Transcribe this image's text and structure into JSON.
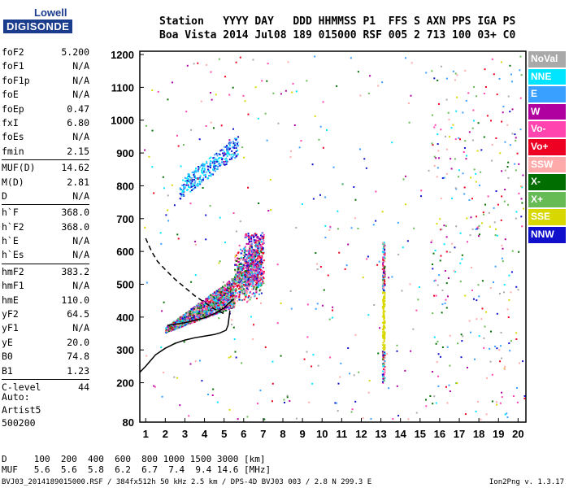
{
  "logo": {
    "line1": "Lowell",
    "line2": "DIGISONDE"
  },
  "header": {
    "line1": "Station   YYYY DAY   DDD HHMMSS P1  FFS S AXN PPS IGA PS",
    "line2": "Boa Vista 2014 Jul08 189 015000 RSF 005 2 713 100 03+ C0"
  },
  "params_groups": [
    [
      [
        "foF2",
        "5.200"
      ],
      [
        "foF1",
        "N/A"
      ],
      [
        "foF1p",
        "N/A"
      ],
      [
        "foE",
        "N/A"
      ],
      [
        "foEp",
        "0.47"
      ],
      [
        "fxI",
        "6.80"
      ],
      [
        "foEs",
        "N/A"
      ],
      [
        "fmin",
        "2.15"
      ]
    ],
    [
      [
        "MUF(D)",
        "14.62"
      ],
      [
        "M(D)",
        "2.81"
      ],
      [
        "D",
        "N/A"
      ]
    ],
    [
      [
        "h`F",
        "368.0"
      ],
      [
        "h`F2",
        "368.0"
      ],
      [
        "h`E",
        "N/A"
      ],
      [
        "h`Es",
        "N/A"
      ]
    ],
    [
      [
        "hmF2",
        "383.2"
      ],
      [
        "hmF1",
        "N/A"
      ],
      [
        "hmE",
        "110.0"
      ],
      [
        "yF2",
        "64.5"
      ],
      [
        "yF1",
        "N/A"
      ],
      [
        "yE",
        "20.0"
      ],
      [
        "B0",
        "74.8"
      ],
      [
        "B1",
        "1.23"
      ]
    ],
    [
      [
        "C-level",
        "44"
      ]
    ]
  ],
  "auto": {
    "line1": "Auto:",
    "line2": "Artist5",
    "line3": "500200"
  },
  "footer": {
    "d_row": "D     100  200  400  600  800 1000 1500 3000 [km]",
    "muf_row": "MUF   5.6  5.6  5.8  6.2  6.7  7.4  9.4 14.6 [MHz]",
    "file_info": "BVJ03_2014189015000.RSF / 384fx512h 50 kHz 2.5 km / DPS-4D BVJ03 003 / 2.8 N 299.3 E",
    "version": "Ion2Png v. 1.3.17"
  },
  "legend": [
    {
      "label": "NoVal",
      "color": "#a9a9a9"
    },
    {
      "label": "NNE",
      "color": "#00e5ff"
    },
    {
      "label": "E",
      "color": "#3aa0ff"
    },
    {
      "label": "W",
      "color": "#b000a0"
    },
    {
      "label": "Vo-",
      "color": "#ff44b0"
    },
    {
      "label": "Vo+",
      "color": "#ee0022"
    },
    {
      "label": "SSW",
      "color": "#ffaaaa"
    },
    {
      "label": "X-",
      "color": "#006e00"
    },
    {
      "label": "X+",
      "color": "#66bb55"
    },
    {
      "label": "SSE",
      "color": "#d8d800"
    },
    {
      "label": "NNW",
      "color": "#1010cc"
    }
  ],
  "chart_data": {
    "type": "scatter",
    "x_ticks": [
      1,
      2,
      3,
      4,
      5,
      6,
      7,
      8,
      9,
      10,
      11,
      12,
      13,
      14,
      15,
      16,
      17,
      18,
      19,
      20
    ],
    "y_ticks": [
      80,
      200,
      300,
      400,
      500,
      600,
      700,
      800,
      900,
      1000,
      1100,
      1200
    ],
    "xlim": [
      0.7,
      20.4
    ],
    "ylim": [
      80,
      1210
    ],
    "grid": false,
    "profile_line": [
      [
        0.7,
        232
      ],
      [
        1.0,
        250
      ],
      [
        1.5,
        285
      ],
      [
        2.0,
        305
      ],
      [
        2.5,
        320
      ],
      [
        3.0,
        330
      ],
      [
        3.5,
        337
      ],
      [
        4.0,
        342
      ],
      [
        4.5,
        347
      ],
      [
        4.8,
        352
      ],
      [
        5.1,
        360
      ],
      [
        5.2,
        375
      ],
      [
        5.3,
        420
      ]
    ],
    "trace_line": [
      [
        2.1,
        375
      ],
      [
        2.5,
        378
      ],
      [
        3.0,
        383
      ],
      [
        3.5,
        390
      ],
      [
        4.0,
        398
      ],
      [
        4.5,
        410
      ],
      [
        5.0,
        428
      ],
      [
        5.2,
        440
      ],
      [
        5.5,
        455
      ]
    ],
    "dashed_line": [
      [
        1.0,
        640
      ],
      [
        1.3,
        600
      ],
      [
        1.6,
        570
      ],
      [
        2.0,
        545
      ],
      [
        2.5,
        515
      ],
      [
        3.0,
        490
      ],
      [
        3.5,
        465
      ],
      [
        4.0,
        445
      ],
      [
        4.5,
        425
      ],
      [
        5.0,
        410
      ]
    ]
  }
}
